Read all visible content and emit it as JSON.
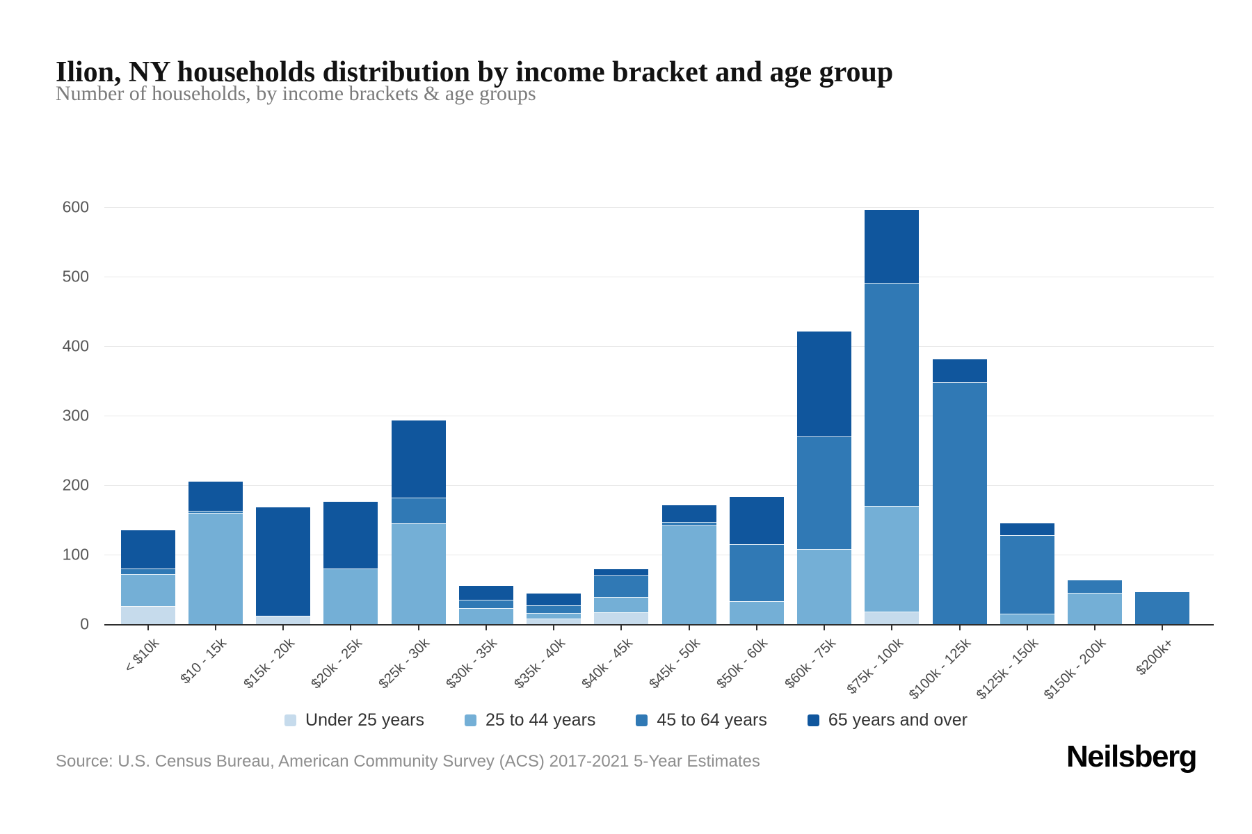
{
  "header": {
    "title": "Ilion, NY households distribution by income bracket and age group",
    "subtitle": "Number of households, by income brackets & age groups"
  },
  "chart_data": {
    "type": "bar",
    "stacked": true,
    "title": "Ilion, NY households distribution by income bracket and age group",
    "xlabel": "",
    "ylabel": "Number of households",
    "ylim": [
      0,
      600
    ],
    "ytick_step": 100,
    "grid": true,
    "legend_position": "bottom",
    "categories": [
      "< $10k",
      "$10 - 15k",
      "$15k - 20k",
      "$20k - 25k",
      "$25k - 30k",
      "$30k - 35k",
      "$35k - 40k",
      "$40k - 45k",
      "$45k - 50k",
      "$50k - 60k",
      "$60k - 75k",
      "$75k - 100k",
      "$100k - 125k",
      "$125k - 150k",
      "$150k - 200k",
      "$200k+"
    ],
    "series": [
      {
        "name": "Under 25 years",
        "color": "#c6dbec",
        "values": [
          26,
          0,
          12,
          0,
          0,
          0,
          8,
          17,
          0,
          0,
          0,
          18,
          0,
          0,
          0,
          0
        ]
      },
      {
        "name": "25 to 44 years",
        "color": "#74afd6",
        "values": [
          46,
          160,
          0,
          80,
          145,
          23,
          8,
          22,
          142,
          33,
          108,
          152,
          0,
          15,
          45,
          0
        ]
      },
      {
        "name": "45 to 64 years",
        "color": "#3079b5",
        "values": [
          8,
          3,
          0,
          0,
          37,
          12,
          11,
          31,
          5,
          82,
          162,
          321,
          348,
          113,
          18,
          46
        ]
      },
      {
        "name": "65 years and over",
        "color": "#10569d",
        "values": [
          55,
          42,
          156,
          96,
          111,
          20,
          17,
          9,
          24,
          68,
          151,
          105,
          33,
          17,
          0,
          0
        ]
      }
    ]
  },
  "footer": {
    "source": "Source: U.S. Census Bureau, American Community Survey (ACS) 2017-2021 5-Year Estimates",
    "brand": "Neilsberg"
  }
}
